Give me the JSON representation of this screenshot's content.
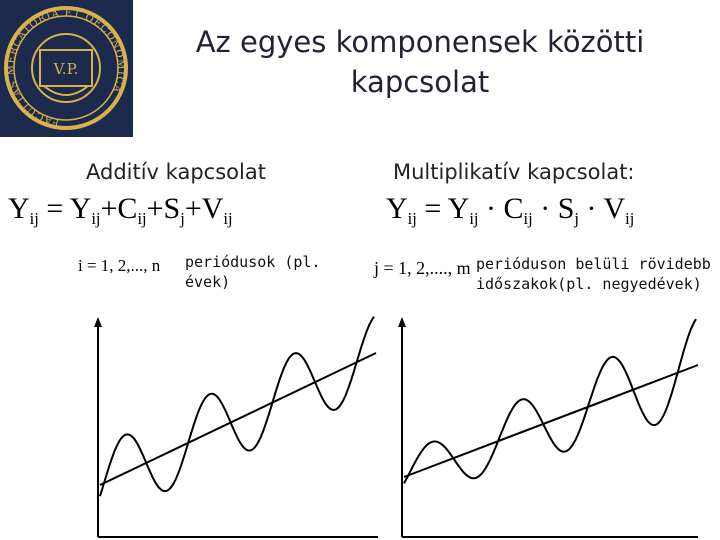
{
  "slide": {
    "title_line1": "Az egyes komponensek közötti",
    "title_line2": "kapcsolat"
  },
  "logo": {
    "ring_text": "FACULTAS MERCATORIA ET OECONOMICA",
    "monogram": "V.P."
  },
  "additive": {
    "heading": "Additív kapcsolat",
    "equation": {
      "lhs": "Y",
      "lhs_sub": "ij",
      "op": "=",
      "t1": "Y",
      "t1_sub": "ij",
      "t2": "C",
      "t2_sub": "ij",
      "t3": "S",
      "t3_sub": "j",
      "t4": "V",
      "t4_sub": "ij",
      "plus": "+"
    },
    "index_range": "i = 1, 2,..., n",
    "index_note": " periódusok (pl. évek)"
  },
  "multiplicative": {
    "heading": "Multiplikatív kapcsolat:",
    "equation": {
      "lhs": "Y",
      "lhs_sub": "ij",
      "op": "=",
      "t1": "Y",
      "t1_sub": "ij",
      "t2": "C",
      "t2_sub": "ij",
      "t3": "S",
      "t3_sub": "j",
      "t4": "V",
      "t4_sub": "ij",
      "dot": "·"
    },
    "index_range": "j = 1, 2,...., m",
    "index_note": "perióduson belüli rövidebb időszakok(pl. negyedévek)"
  },
  "colors": {
    "logo_bg": "#1b2a4d",
    "logo_gold": "#d8b24a",
    "curve": "#000000"
  }
}
